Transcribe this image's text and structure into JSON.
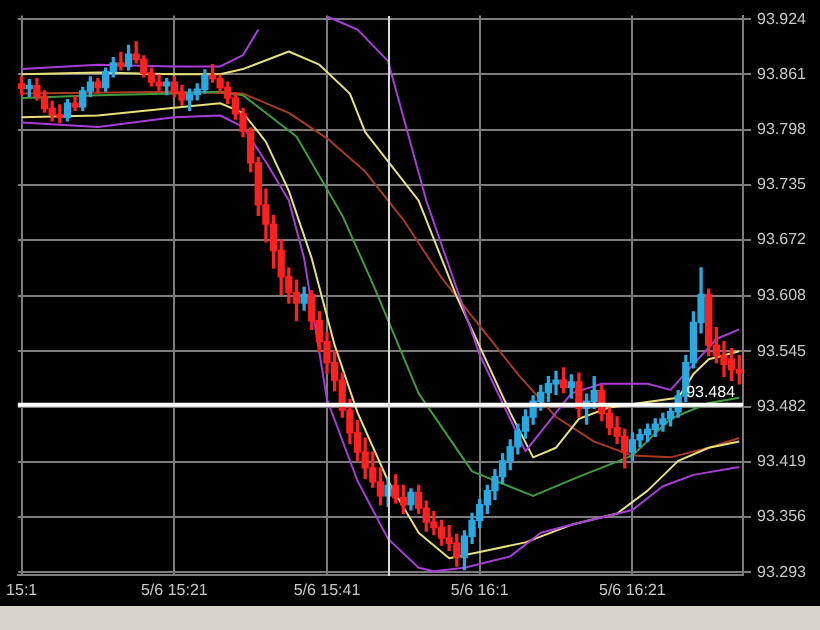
{
  "chart_data": {
    "type": "candlestick",
    "categories": [
      "15:1",
      null,
      null,
      null,
      null,
      null,
      null,
      null,
      null,
      null,
      null,
      null,
      null,
      null,
      null,
      null,
      null,
      null,
      null,
      null,
      "5/6 15:21",
      null,
      null,
      null,
      null,
      null,
      null,
      null,
      null,
      null,
      null,
      null,
      null,
      null,
      null,
      null,
      null,
      null,
      null,
      null,
      "5/6 15:41",
      null,
      null,
      null,
      null,
      null,
      null,
      null,
      null,
      null,
      null,
      null,
      null,
      null,
      null,
      null,
      null,
      null,
      null,
      null,
      "5/6 16:1",
      null,
      null,
      null,
      null,
      null,
      null,
      null,
      null,
      null,
      null,
      null,
      null,
      null,
      null,
      null,
      null,
      null,
      null,
      null,
      "5/6 16:21",
      null,
      null,
      null,
      null,
      null,
      null,
      null,
      null,
      null,
      null,
      null,
      null,
      null,
      null
    ],
    "ohlc": [
      [
        93.85,
        93.858,
        93.838,
        93.845
      ],
      [
        93.845,
        93.855,
        93.836,
        93.848
      ],
      [
        93.848,
        93.856,
        93.832,
        93.836
      ],
      [
        93.836,
        93.842,
        93.818,
        93.822
      ],
      [
        93.822,
        93.83,
        93.808,
        93.815
      ],
      [
        93.815,
        93.826,
        93.806,
        93.812
      ],
      [
        93.812,
        93.832,
        93.808,
        93.828
      ],
      [
        93.828,
        93.836,
        93.82,
        93.824
      ],
      [
        93.824,
        93.846,
        93.82,
        93.842
      ],
      [
        93.842,
        93.858,
        93.836,
        93.852
      ],
      [
        93.852,
        93.856,
        93.84,
        93.846
      ],
      [
        93.846,
        93.868,
        93.842,
        93.864
      ],
      [
        93.864,
        93.88,
        93.858,
        93.874
      ],
      [
        93.874,
        93.886,
        93.866,
        93.87
      ],
      [
        93.87,
        93.894,
        93.866,
        93.884
      ],
      [
        93.884,
        93.898,
        93.874,
        93.878
      ],
      [
        93.878,
        93.882,
        93.858,
        93.862
      ],
      [
        93.862,
        93.868,
        93.848,
        93.852
      ],
      [
        93.852,
        93.86,
        93.842,
        93.848
      ],
      [
        93.848,
        93.856,
        93.838,
        93.852
      ],
      [
        93.852,
        93.858,
        93.836,
        93.84
      ],
      [
        93.84,
        93.848,
        93.826,
        93.832
      ],
      [
        93.832,
        93.844,
        93.82,
        93.838
      ],
      [
        93.838,
        93.85,
        93.832,
        93.844
      ],
      [
        93.844,
        93.866,
        93.84,
        93.86
      ],
      [
        93.86,
        93.872,
        93.852,
        93.856
      ],
      [
        93.856,
        93.86,
        93.84,
        93.846
      ],
      [
        93.846,
        93.852,
        93.828,
        93.834
      ],
      [
        93.834,
        93.84,
        93.81,
        93.816
      ],
      [
        93.816,
        93.822,
        93.79,
        93.796
      ],
      [
        93.796,
        93.8,
        93.75,
        93.76
      ],
      [
        93.76,
        93.766,
        93.7,
        93.712
      ],
      [
        93.712,
        93.73,
        93.67,
        93.69
      ],
      [
        93.69,
        93.7,
        93.64,
        93.66
      ],
      [
        93.66,
        93.672,
        93.61,
        93.63
      ],
      [
        93.63,
        93.64,
        93.6,
        93.612
      ],
      [
        93.612,
        93.626,
        93.58,
        93.6
      ],
      [
        93.6,
        93.618,
        93.592,
        93.61
      ],
      [
        93.61,
        93.614,
        93.57,
        93.58
      ],
      [
        93.58,
        93.59,
        93.545,
        93.556
      ],
      [
        93.556,
        93.566,
        93.52,
        93.532
      ],
      [
        93.532,
        93.545,
        93.5,
        93.512
      ],
      [
        93.512,
        93.52,
        93.47,
        93.478
      ],
      [
        93.478,
        93.49,
        93.44,
        93.452
      ],
      [
        93.452,
        93.466,
        93.42,
        93.43
      ],
      [
        93.43,
        93.446,
        93.4,
        93.412
      ],
      [
        93.412,
        93.43,
        93.39,
        93.396
      ],
      [
        93.396,
        93.412,
        93.37,
        93.38
      ],
      [
        93.38,
        93.4,
        93.368,
        93.392
      ],
      [
        93.392,
        93.404,
        93.372,
        93.378
      ],
      [
        93.378,
        93.392,
        93.36,
        93.37
      ],
      [
        93.37,
        93.388,
        93.364,
        93.384
      ],
      [
        93.384,
        93.392,
        93.36,
        93.366
      ],
      [
        93.366,
        93.374,
        93.34,
        93.35
      ],
      [
        93.35,
        93.362,
        93.336,
        93.344
      ],
      [
        93.344,
        93.352,
        93.324,
        93.332
      ],
      [
        93.332,
        93.346,
        93.318,
        93.326
      ],
      [
        93.326,
        93.336,
        93.3,
        93.31
      ],
      [
        93.31,
        93.34,
        93.296,
        93.334
      ],
      [
        93.334,
        93.36,
        93.326,
        93.352
      ],
      [
        93.352,
        93.376,
        93.344,
        93.37
      ],
      [
        93.37,
        93.392,
        93.36,
        93.386
      ],
      [
        93.386,
        93.41,
        93.376,
        93.402
      ],
      [
        93.402,
        93.428,
        93.394,
        93.42
      ],
      [
        93.42,
        93.444,
        93.41,
        93.436
      ],
      [
        93.436,
        93.462,
        93.428,
        93.454
      ],
      [
        93.454,
        93.478,
        93.446,
        93.47
      ],
      [
        93.47,
        93.494,
        93.462,
        93.488
      ],
      [
        93.488,
        93.506,
        93.478,
        93.498
      ],
      [
        93.498,
        93.516,
        93.488,
        93.508
      ],
      [
        93.508,
        93.522,
        93.496,
        93.512
      ],
      [
        93.512,
        93.526,
        93.498,
        93.504
      ],
      [
        93.504,
        93.518,
        93.492,
        93.51
      ],
      [
        93.51,
        93.52,
        93.47,
        93.48
      ],
      [
        93.48,
        93.496,
        93.462,
        93.488
      ],
      [
        93.488,
        93.516,
        93.48,
        93.5
      ],
      [
        93.5,
        93.506,
        93.466,
        93.474
      ],
      [
        93.474,
        93.48,
        93.45,
        93.458
      ],
      [
        93.458,
        93.47,
        93.44,
        93.448
      ],
      [
        93.448,
        93.456,
        93.412,
        93.43
      ],
      [
        93.43,
        93.452,
        93.42,
        93.444
      ],
      [
        93.444,
        93.456,
        93.436,
        93.45
      ],
      [
        93.45,
        93.462,
        93.442,
        93.456
      ],
      [
        93.456,
        93.468,
        93.448,
        93.462
      ],
      [
        93.462,
        93.474,
        93.454,
        93.468
      ],
      [
        93.468,
        93.482,
        93.46,
        93.476
      ],
      [
        93.476,
        93.5,
        93.47,
        93.494
      ],
      [
        93.494,
        93.54,
        93.488,
        93.532
      ],
      [
        93.532,
        93.59,
        93.526,
        93.578
      ],
      [
        93.578,
        93.64,
        93.566,
        93.61
      ],
      [
        93.61,
        93.616,
        93.54,
        93.552
      ],
      [
        93.552,
        93.572,
        93.532,
        93.54
      ],
      [
        93.54,
        93.556,
        93.516,
        93.53
      ],
      [
        93.536,
        93.548,
        93.512,
        93.524
      ],
      [
        93.524,
        93.54,
        93.508,
        93.52
      ]
    ],
    "colors": [
      "#ff2020",
      "#2aa8e0",
      "#ff2020",
      "#ff2020",
      "#ff2020",
      "#ff2020",
      "#2aa8e0",
      "#ff2020",
      "#2aa8e0",
      "#2aa8e0",
      "#ff2020",
      "#2aa8e0",
      "#2aa8e0",
      "#ff2020",
      "#2aa8e0",
      "#ff2020",
      "#ff2020",
      "#ff2020",
      "#ff2020",
      "#2aa8e0",
      "#ff2020",
      "#ff2020",
      "#2aa8e0",
      "#2aa8e0",
      "#2aa8e0",
      "#ff2020",
      "#ff2020",
      "#ff2020",
      "#ff2020",
      "#ff2020",
      "#ff2020",
      "#ff2020",
      "#ff2020",
      "#ff2020",
      "#ff2020",
      "#ff2020",
      "#ff2020",
      "#2aa8e0",
      "#ff2020",
      "#ff2020",
      "#ff2020",
      "#ff2020",
      "#ff2020",
      "#ff2020",
      "#ff2020",
      "#ff2020",
      "#ff2020",
      "#ff2020",
      "#2aa8e0",
      "#ff2020",
      "#ff2020",
      "#2aa8e0",
      "#ff2020",
      "#ff2020",
      "#ff2020",
      "#ff2020",
      "#ff2020",
      "#ff2020",
      "#2aa8e0",
      "#2aa8e0",
      "#2aa8e0",
      "#2aa8e0",
      "#2aa8e0",
      "#2aa8e0",
      "#2aa8e0",
      "#2aa8e0",
      "#2aa8e0",
      "#2aa8e0",
      "#2aa8e0",
      "#2aa8e0",
      "#2aa8e0",
      "#ff2020",
      "#2aa8e0",
      "#ff2020",
      "#2aa8e0",
      "#2aa8e0",
      "#ff2020",
      "#ff2020",
      "#ff2020",
      "#ff2020",
      "#2aa8e0",
      "#2aa8e0",
      "#2aa8e0",
      "#2aa8e0",
      "#2aa8e0",
      "#2aa8e0",
      "#2aa8e0",
      "#2aa8e0",
      "#2aa8e0",
      "#2aa8e0",
      "#ff2020",
      "#ff2020",
      "#ff2020",
      "#ff2020",
      "#ff2020"
    ],
    "series": [
      {
        "type": "line",
        "color": "#a83cd8",
        "values": [
          93.867,
          null,
          null,
          null,
          null,
          null,
          null,
          null,
          null,
          null,
          93.872,
          null,
          null,
          null,
          null,
          null,
          null,
          null,
          null,
          null,
          93.87,
          null,
          null,
          null,
          null,
          null,
          93.87,
          null,
          null,
          93.883,
          null,
          93.912,
          null,
          null,
          null,
          null,
          null,
          null,
          null,
          null,
          null,
          null,
          null,
          null,
          null,
          null,
          null,
          null,
          null,
          null,
          null,
          null,
          null,
          null,
          null,
          null,
          null,
          null,
          null,
          null,
          null,
          null,
          null,
          null,
          null,
          null,
          null,
          null,
          null,
          null,
          null,
          null,
          null,
          null,
          null,
          null,
          null,
          null,
          null,
          null,
          null,
          null,
          null,
          null,
          null,
          null,
          null,
          null,
          null,
          null,
          null,
          null,
          null,
          null,
          null
        ]
      },
      {
        "type": "line",
        "color": "#a83cd8",
        "values": [
          null,
          null,
          null,
          null,
          null,
          null,
          null,
          null,
          null,
          null,
          null,
          null,
          null,
          null,
          null,
          null,
          null,
          null,
          null,
          null,
          null,
          null,
          null,
          null,
          null,
          null,
          null,
          null,
          null,
          null,
          null,
          null,
          null,
          null,
          null,
          null,
          null,
          null,
          null,
          null,
          93.927,
          null,
          null,
          null,
          93.912,
          null,
          null,
          null,
          93.876,
          null,
          null,
          null,
          null,
          93.717,
          null,
          null,
          null,
          null,
          null,
          null,
          93.541,
          null,
          null,
          null,
          null,
          null,
          93.431,
          null,
          null,
          93.464,
          null,
          null,
          93.497,
          null,
          null,
          null,
          93.508,
          null,
          null,
          null,
          null,
          null,
          93.508,
          null,
          null,
          93.501,
          null,
          null,
          93.53,
          null,
          null,
          93.559,
          null,
          null,
          93.57
        ]
      },
      {
        "type": "line",
        "color": "#a83cd8",
        "values": [
          93.806,
          null,
          null,
          null,
          null,
          null,
          null,
          null,
          null,
          null,
          93.801,
          null,
          null,
          null,
          null,
          null,
          null,
          null,
          null,
          null,
          93.812,
          null,
          null,
          null,
          null,
          null,
          93.814,
          null,
          null,
          93.801,
          null,
          null,
          93.761,
          null,
          null,
          93.717,
          null,
          93.651,
          null,
          null,
          93.49,
          null,
          null,
          null,
          93.397,
          null,
          null,
          null,
          93.331,
          null,
          null,
          null,
          93.298,
          null,
          93.294,
          null,
          null,
          null,
          93.298,
          null,
          null,
          null,
          null,
          null,
          93.311,
          null,
          null,
          null,
          93.338,
          null,
          null,
          null,
          93.347,
          null,
          null,
          null,
          null,
          null,
          null,
          null,
          93.364,
          null,
          null,
          null,
          93.391,
          null,
          null,
          null,
          93.404,
          null,
          null,
          null,
          null,
          null,
          93.413
        ]
      },
      {
        "type": "line",
        "color": "#e6e07a",
        "values": [
          93.861,
          null,
          null,
          null,
          null,
          null,
          null,
          null,
          null,
          null,
          93.863,
          null,
          null,
          null,
          null,
          null,
          null,
          null,
          null,
          null,
          93.861,
          null,
          null,
          null,
          null,
          null,
          93.861,
          null,
          null,
          93.867,
          null,
          null,
          null,
          null,
          null,
          93.887,
          null,
          null,
          null,
          93.872,
          null,
          null,
          null,
          93.839,
          null,
          93.795,
          null,
          null,
          null,
          null,
          null,
          null,
          93.717,
          null,
          null,
          null,
          null,
          93.607,
          null,
          null,
          null,
          null,
          null,
          null,
          93.475,
          null,
          null,
          93.424,
          null,
          null,
          93.435,
          null,
          null,
          93.468,
          null,
          null,
          null,
          93.481,
          null,
          null,
          null,
          93.486,
          null,
          null,
          null,
          null,
          93.492,
          null,
          93.519,
          null,
          93.536,
          null,
          null,
          null,
          93.545
        ]
      },
      {
        "type": "line",
        "color": "#e6e07a",
        "values": [
          93.812,
          null,
          null,
          null,
          null,
          null,
          null,
          null,
          null,
          null,
          93.814,
          null,
          null,
          null,
          null,
          null,
          null,
          null,
          null,
          null,
          93.823,
          null,
          null,
          null,
          null,
          null,
          93.828,
          null,
          null,
          93.817,
          null,
          null,
          93.784,
          null,
          null,
          93.728,
          null,
          null,
          93.651,
          null,
          null,
          93.552,
          null,
          null,
          93.475,
          null,
          null,
          null,
          93.397,
          null,
          null,
          null,
          93.338,
          null,
          null,
          null,
          93.309,
          null,
          null,
          null,
          93.316,
          null,
          null,
          null,
          null,
          null,
          93.327,
          null,
          null,
          null,
          null,
          null,
          93.347,
          null,
          null,
          null,
          null,
          null,
          93.36,
          null,
          null,
          null,
          93.386,
          null,
          null,
          null,
          93.42,
          null,
          null,
          null,
          93.435,
          null,
          null,
          null,
          93.442
        ]
      },
      {
        "type": "line",
        "color": "#3e9c3e",
        "values": [
          93.834,
          null,
          null,
          null,
          null,
          null,
          null,
          null,
          null,
          null,
          93.837,
          null,
          null,
          null,
          null,
          null,
          null,
          null,
          null,
          null,
          93.839,
          null,
          null,
          null,
          null,
          null,
          93.841,
          null,
          null,
          93.837,
          null,
          null,
          null,
          null,
          null,
          null,
          93.79,
          null,
          null,
          null,
          null,
          null,
          93.7,
          null,
          null,
          null,
          93.622,
          null,
          null,
          null,
          null,
          null,
          93.497,
          null,
          null,
          null,
          null,
          null,
          null,
          93.408,
          null,
          null,
          null,
          null,
          null,
          null,
          null,
          93.38,
          null,
          null,
          null,
          null,
          null,
          93.402,
          null,
          null,
          null,
          null,
          null,
          null,
          93.426,
          null,
          null,
          null,
          null,
          93.468,
          null,
          null,
          null,
          null,
          93.486,
          null,
          null,
          null,
          93.492
        ]
      },
      {
        "type": "line",
        "color": "#a83a20",
        "values": [
          93.839,
          null,
          null,
          null,
          null,
          null,
          null,
          null,
          null,
          null,
          null,
          null,
          null,
          null,
          null,
          null,
          null,
          null,
          null,
          null,
          93.841,
          null,
          null,
          null,
          null,
          null,
          null,
          null,
          null,
          93.839,
          null,
          null,
          null,
          null,
          null,
          93.817,
          null,
          null,
          null,
          null,
          93.788,
          null,
          null,
          null,
          null,
          93.75,
          null,
          null,
          null,
          null,
          93.695,
          null,
          null,
          null,
          null,
          93.629,
          null,
          null,
          null,
          null,
          93.574,
          null,
          null,
          null,
          null,
          93.519,
          null,
          null,
          null,
          null,
          93.47,
          null,
          null,
          null,
          null,
          93.442,
          null,
          null,
          null,
          null,
          93.426,
          null,
          null,
          null,
          null,
          93.424,
          null,
          null,
          null,
          null,
          93.435,
          null,
          null,
          null,
          93.446
        ]
      }
    ],
    "ylim": [
      93.29,
      93.928
    ],
    "yticks": [
      93.293,
      93.356,
      93.419,
      93.482,
      93.545,
      93.608,
      93.672,
      93.735,
      93.798,
      93.861,
      93.924
    ],
    "grid": true,
    "legend": false,
    "ref_lines": [
      {
        "axis": "y",
        "value": 93.484,
        "label": "93.484",
        "color": "#ffffff"
      }
    ]
  }
}
